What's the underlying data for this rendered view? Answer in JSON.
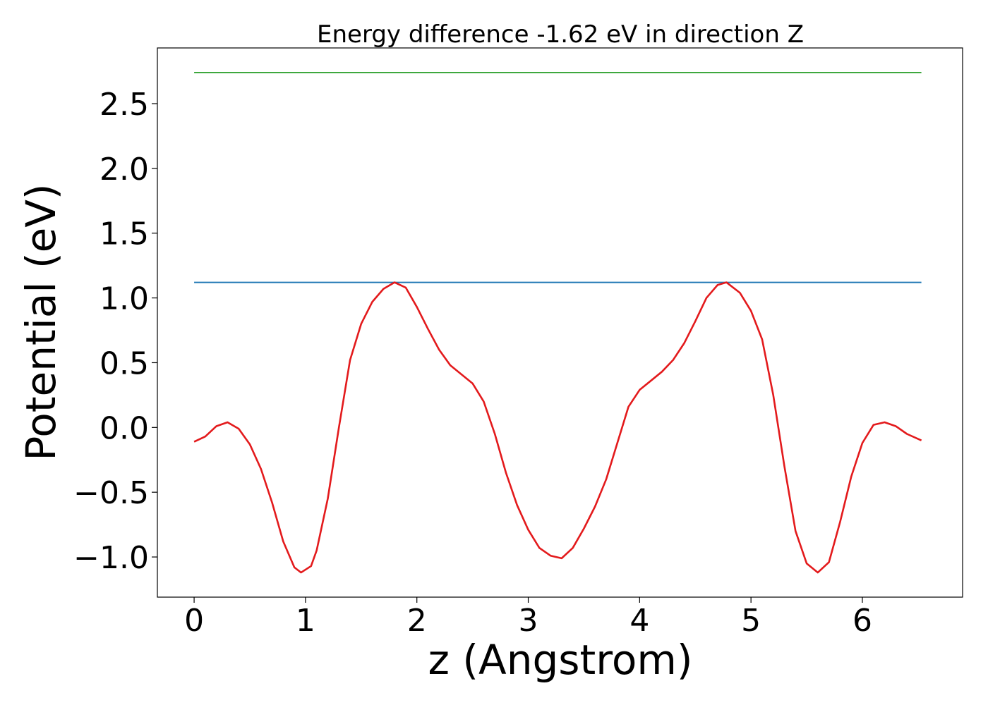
{
  "chart_data": {
    "type": "line",
    "title": "Energy difference -1.62 eV in direction Z",
    "xlabel": "z (Angstrom)",
    "ylabel": "Potential (eV)",
    "xlim": [
      -0.33,
      6.9
    ],
    "ylim": [
      -1.31,
      2.93
    ],
    "xticks": [
      0,
      1,
      2,
      3,
      4,
      5,
      6
    ],
    "xtick_labels": [
      "0",
      "1",
      "2",
      "3",
      "4",
      "5",
      "6"
    ],
    "yticks": [
      -1.0,
      -0.5,
      0.0,
      0.5,
      1.0,
      1.5,
      2.0,
      2.5
    ],
    "ytick_labels": [
      "−1.0",
      "−0.5",
      "0.0",
      "0.5",
      "1.0",
      "1.5",
      "2.0",
      "2.5"
    ],
    "grid": false,
    "legend": "none",
    "series": [
      {
        "color": "#2ca02c",
        "x": [
          0,
          6.53
        ],
        "y": [
          2.74,
          2.74
        ]
      },
      {
        "color": "#1f77b4",
        "x": [
          0,
          6.53
        ],
        "y": [
          1.12,
          1.12
        ]
      },
      {
        "color": "#e31a1c",
        "x": [
          0,
          0.1,
          0.2,
          0.3,
          0.4,
          0.5,
          0.6,
          0.7,
          0.8,
          0.9,
          0.96,
          1.05,
          1.1,
          1.2,
          1.3,
          1.4,
          1.5,
          1.6,
          1.7,
          1.8,
          1.9,
          2.0,
          2.1,
          2.2,
          2.3,
          2.4,
          2.5,
          2.6,
          2.7,
          2.8,
          2.9,
          3.0,
          3.1,
          3.2,
          3.3,
          3.4,
          3.5,
          3.6,
          3.7,
          3.8,
          3.9,
          4.0,
          4.1,
          4.2,
          4.3,
          4.4,
          4.5,
          4.6,
          4.7,
          4.78,
          4.9,
          5.0,
          5.1,
          5.2,
          5.3,
          5.4,
          5.5,
          5.6,
          5.7,
          5.8,
          5.9,
          6.0,
          6.1,
          6.2,
          6.3,
          6.4,
          6.53
        ],
        "y": [
          -0.11,
          -0.07,
          0.01,
          0.04,
          -0.01,
          -0.13,
          -0.32,
          -0.58,
          -0.88,
          -1.08,
          -1.12,
          -1.07,
          -0.95,
          -0.55,
          0.0,
          0.52,
          0.8,
          0.97,
          1.07,
          1.12,
          1.08,
          0.93,
          0.76,
          0.6,
          0.48,
          0.41,
          0.34,
          0.2,
          -0.05,
          -0.35,
          -0.6,
          -0.79,
          -0.93,
          -0.99,
          -1.01,
          -0.93,
          -0.78,
          -0.61,
          -0.4,
          -0.12,
          0.16,
          0.29,
          0.36,
          0.43,
          0.52,
          0.65,
          0.82,
          1.0,
          1.1,
          1.12,
          1.04,
          0.9,
          0.68,
          0.25,
          -0.3,
          -0.8,
          -1.05,
          -1.12,
          -1.04,
          -0.73,
          -0.38,
          -0.12,
          0.02,
          0.04,
          0.01,
          -0.05,
          -0.1
        ]
      }
    ]
  }
}
